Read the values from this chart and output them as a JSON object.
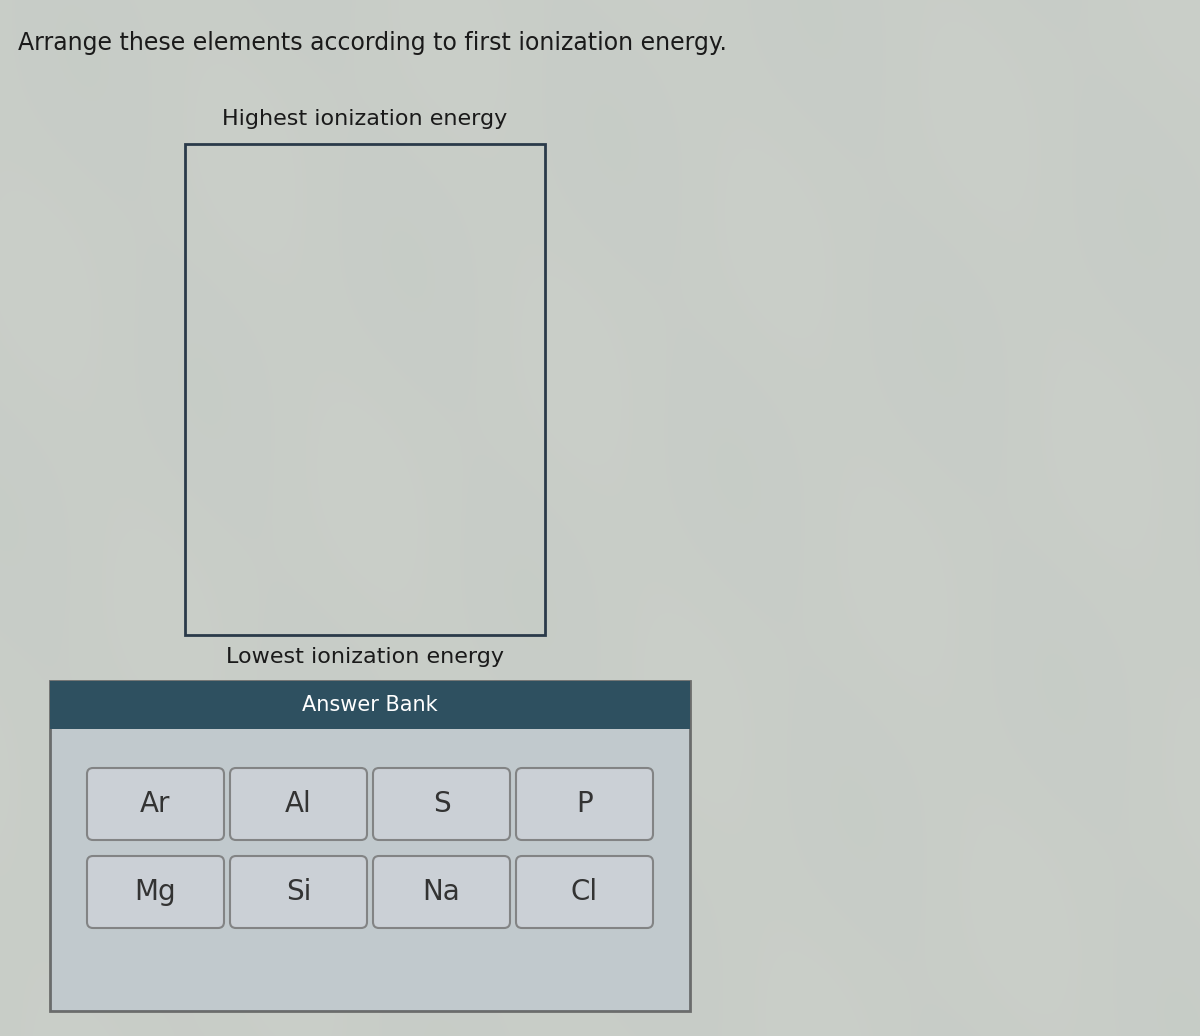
{
  "title": "Arrange these elements according to first ionization energy.",
  "title_fontsize": 17,
  "title_color": "#1a1a1a",
  "highest_label": "Highest ionization energy",
  "lowest_label": "Lowest ionization energy",
  "answer_bank_label": "Answer Bank",
  "answer_bank_header_color": "#2e5060",
  "answer_bank_bg_color": "#bfc8d0",
  "answer_bank_border_color": "#444444",
  "big_box_border_color": "#2a3a4a",
  "big_box_fill_color": "none",
  "bg_base_color": [
    0.78,
    0.8,
    0.78
  ],
  "bg_wave_color": [
    0.82,
    0.84,
    0.82
  ],
  "elements_row1": [
    "Ar",
    "Al",
    "S",
    "P"
  ],
  "elements_row2": [
    "Mg",
    "Si",
    "Na",
    "Cl"
  ],
  "element_box_color": "#cdd2d8",
  "element_box_border_color": "#777777",
  "element_text_color": "#333333",
  "label_fontsize": 16,
  "element_fontsize": 20,
  "answer_bank_text_fontsize": 15
}
